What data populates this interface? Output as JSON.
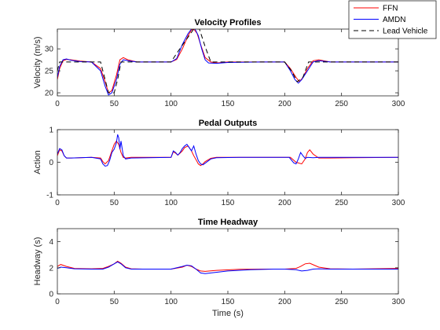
{
  "chart_data": [
    {
      "type": "line",
      "title": "Velocity Profiles",
      "xlabel": "",
      "ylabel": "Velocity (m/s)",
      "xlim": [
        0,
        300
      ],
      "ylim": [
        19.3,
        34.5
      ],
      "xticks": [
        0,
        50,
        100,
        150,
        200,
        250,
        300
      ],
      "yticks": [
        20,
        25,
        30
      ],
      "series": [
        {
          "name": "FFN",
          "color": "#ff0000",
          "dash": "",
          "x": [
            0,
            2,
            5,
            8,
            12,
            20,
            30,
            38,
            42,
            45,
            48,
            52,
            55,
            58,
            62,
            70,
            80,
            90,
            100,
            105,
            110,
            115,
            118,
            120,
            123,
            126,
            130,
            135,
            140,
            150,
            180,
            200,
            205,
            210,
            213,
            216,
            220,
            225,
            230,
            240,
            260,
            300
          ],
          "y": [
            23,
            25.5,
            27.3,
            27.6,
            27.5,
            27.2,
            27,
            25.5,
            22.5,
            20,
            20.5,
            24,
            27.5,
            28,
            27.5,
            27,
            27,
            27,
            27,
            27.6,
            30,
            33,
            34.3,
            34.5,
            33.5,
            31,
            28,
            27,
            26.8,
            27,
            27,
            27,
            25.5,
            23.5,
            22.5,
            23.5,
            25.5,
            27.3,
            27.5,
            27,
            27,
            27
          ]
        },
        {
          "name": "AMDN",
          "color": "#0000ff",
          "dash": "",
          "x": [
            0,
            2,
            5,
            8,
            12,
            20,
            30,
            38,
            42,
            45,
            48,
            52,
            55,
            58,
            62,
            70,
            80,
            90,
            100,
            105,
            110,
            115,
            118,
            121,
            124,
            127,
            130,
            133,
            140,
            150,
            180,
            200,
            205,
            209,
            212,
            215,
            220,
            225,
            230,
            240,
            260,
            300
          ],
          "y": [
            23.5,
            26,
            27.5,
            27.7,
            27.4,
            27.1,
            27,
            25,
            21.5,
            19.5,
            20,
            23,
            26.5,
            27.5,
            27.3,
            27,
            27,
            27,
            27,
            27.8,
            31,
            33.5,
            34.5,
            34.6,
            33,
            30,
            27.5,
            26.8,
            26.7,
            26.9,
            27,
            27,
            25,
            23,
            22.2,
            23,
            25,
            27,
            27.3,
            27,
            27,
            27
          ]
        },
        {
          "name": "Lead Vehicle",
          "color": "#000000",
          "dash": "6,4",
          "x": [
            0,
            2,
            5,
            38,
            42,
            45,
            50,
            53,
            56,
            100,
            105,
            120,
            125,
            130,
            135,
            140,
            150,
            200,
            206,
            211,
            216,
            221,
            300
          ],
          "y": [
            25,
            27,
            27,
            27,
            23,
            20,
            20,
            23,
            27,
            27,
            29,
            34.5,
            34.5,
            30.5,
            27,
            27,
            27,
            27,
            25,
            22.5,
            23.5,
            27,
            27
          ]
        }
      ],
      "legend": {
        "placement": "top-right",
        "entries": [
          "FFN",
          "AMDN",
          "Lead Vehicle"
        ]
      }
    },
    {
      "type": "line",
      "title": "Pedal Outputs",
      "xlabel": "",
      "ylabel": "Action",
      "xlim": [
        0,
        300
      ],
      "ylim": [
        -1,
        1
      ],
      "xticks": [
        0,
        50,
        100,
        150,
        200,
        250,
        300
      ],
      "yticks": [
        -1,
        0,
        1
      ],
      "series": [
        {
          "name": "FFN",
          "color": "#ff0000",
          "dash": "",
          "x": [
            0,
            2,
            4,
            6,
            8,
            12,
            20,
            30,
            38,
            40,
            42,
            45,
            47,
            50,
            52,
            54,
            56,
            58,
            60,
            65,
            80,
            100,
            102,
            104,
            106,
            108,
            110,
            112,
            115,
            118,
            120,
            122,
            124,
            126,
            128,
            130,
            135,
            140,
            160,
            200,
            205,
            210,
            215,
            218,
            220,
            222,
            225,
            230,
            240,
            260,
            300
          ],
          "y": [
            0.2,
            0.38,
            0.35,
            0.2,
            0.13,
            0.13,
            0.14,
            0.15,
            0.13,
            0.02,
            -0.05,
            0.05,
            0.25,
            0.55,
            0.65,
            0.55,
            0.3,
            0.15,
            0.13,
            0.15,
            0.15,
            0.15,
            0.32,
            0.28,
            0.22,
            0.28,
            0.35,
            0.45,
            0.5,
            0.35,
            0.2,
            0.08,
            -0.05,
            -0.1,
            -0.05,
            0.02,
            0.12,
            0.15,
            0.15,
            0.15,
            0.15,
            0,
            -0.05,
            0.1,
            0.3,
            0.38,
            0.25,
            0.13,
            0.13,
            0.14,
            0.15
          ]
        },
        {
          "name": "AMDN",
          "color": "#0000ff",
          "dash": "",
          "x": [
            0,
            2,
            4,
            6,
            8,
            12,
            20,
            30,
            38,
            40,
            42,
            44,
            46,
            48,
            50,
            52,
            53,
            54,
            55,
            56,
            58,
            60,
            65,
            80,
            100,
            102,
            104,
            106,
            108,
            110,
            112,
            114,
            116,
            118,
            120,
            122,
            124,
            126,
            128,
            130,
            135,
            140,
            160,
            200,
            204,
            208,
            210,
            212,
            214,
            216,
            218,
            220,
            225,
            230,
            240,
            260,
            300
          ],
          "y": [
            0.25,
            0.42,
            0.38,
            0.2,
            0.13,
            0.13,
            0.14,
            0.15,
            0.1,
            -0.05,
            -0.12,
            -0.1,
            0.05,
            0.3,
            0.4,
            0.6,
            0.85,
            0.75,
            0.4,
            0.65,
            0.2,
            0.1,
            0.13,
            0.14,
            0.15,
            0.35,
            0.3,
            0.22,
            0.3,
            0.42,
            0.5,
            0.55,
            0.45,
            0.35,
            0.5,
            0.25,
            0.05,
            -0.05,
            -0.08,
            -0.03,
            0.1,
            0.14,
            0.15,
            0.15,
            0.15,
            -0.02,
            -0.05,
            0.1,
            0.3,
            0.2,
            0.12,
            0.15,
            0.14,
            0.15,
            0.15,
            0.15,
            0.15
          ]
        }
      ]
    },
    {
      "type": "line",
      "title": "Time Headway",
      "xlabel": "Time (s)",
      "ylabel": "Headway (s)",
      "xlim": [
        0,
        300
      ],
      "ylim": [
        0,
        5
      ],
      "xticks": [
        0,
        50,
        100,
        150,
        200,
        250,
        300
      ],
      "yticks": [
        0,
        2,
        4
      ],
      "series": [
        {
          "name": "FFN",
          "color": "#ff0000",
          "dash": "",
          "x": [
            0,
            3,
            8,
            15,
            30,
            40,
            45,
            50,
            53,
            56,
            60,
            65,
            75,
            100,
            110,
            114,
            118,
            122,
            126,
            130,
            140,
            160,
            180,
            200,
            210,
            214,
            218,
            222,
            226,
            230,
            240,
            260,
            300
          ],
          "y": [
            2.1,
            2.25,
            2.1,
            1.95,
            1.92,
            1.95,
            2.1,
            2.3,
            2.5,
            2.35,
            2.05,
            1.92,
            1.9,
            1.9,
            2.05,
            2.2,
            2.1,
            1.9,
            1.75,
            1.72,
            1.8,
            1.88,
            1.9,
            1.9,
            1.95,
            2.1,
            2.3,
            2.35,
            2.2,
            2.05,
            1.92,
            1.9,
            1.95
          ]
        },
        {
          "name": "AMDN",
          "color": "#0000ff",
          "dash": "",
          "x": [
            0,
            3,
            8,
            15,
            30,
            40,
            45,
            50,
            53,
            56,
            60,
            65,
            75,
            100,
            110,
            114,
            118,
            122,
            126,
            130,
            135,
            150,
            170,
            190,
            200,
            210,
            215,
            220,
            225,
            230,
            240,
            260,
            300
          ],
          "y": [
            1.95,
            2.05,
            2,
            1.92,
            1.9,
            1.9,
            2.05,
            2.3,
            2.45,
            2.3,
            2,
            1.9,
            1.9,
            1.9,
            2.1,
            2.2,
            2.15,
            1.9,
            1.6,
            1.55,
            1.6,
            1.75,
            1.85,
            1.9,
            1.9,
            1.85,
            1.75,
            1.8,
            1.9,
            1.92,
            1.9,
            1.9,
            1.9
          ]
        }
      ]
    }
  ]
}
